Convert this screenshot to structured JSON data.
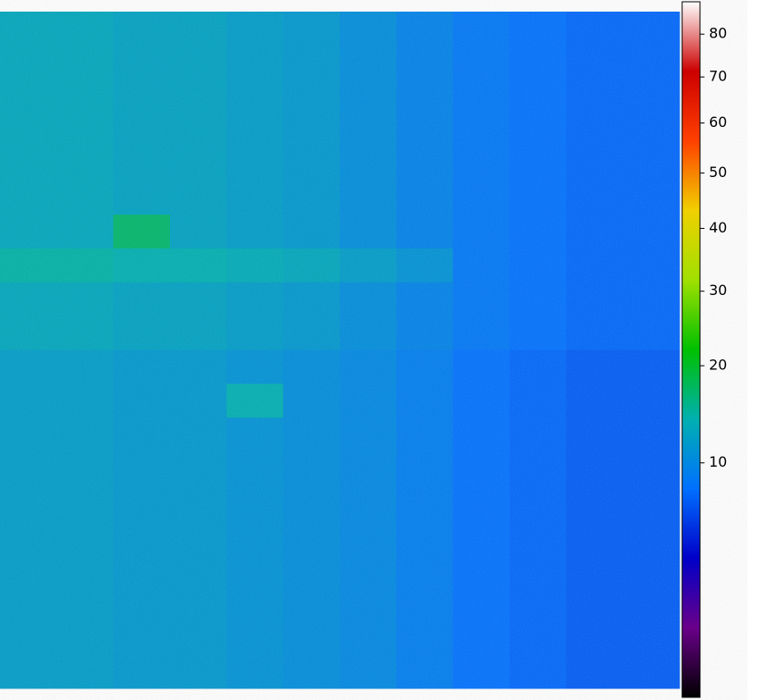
{
  "chart_data": {
    "type": "heatmap",
    "values": [
      [
        13,
        13,
        12.5,
        12.5,
        12,
        11.5,
        10.5,
        9.5,
        8.5,
        8,
        7.5,
        7.5
      ],
      [
        13,
        13,
        12.5,
        12.5,
        12,
        11.5,
        10.5,
        9.5,
        8.5,
        8,
        7.5,
        7.5
      ],
      [
        13,
        13,
        12.5,
        12.5,
        12,
        11.5,
        10.5,
        9.5,
        8.5,
        8,
        7.5,
        7.5
      ],
      [
        13,
        13,
        12.5,
        12.5,
        12,
        11.5,
        10.5,
        9.5,
        8.5,
        8,
        7.5,
        7.5
      ],
      [
        13,
        13,
        12.5,
        12.5,
        12,
        11.5,
        10.5,
        9.5,
        8.5,
        8,
        7.5,
        7.5
      ],
      [
        13,
        13,
        12.5,
        12.5,
        12,
        11.5,
        10.5,
        9.5,
        8.5,
        8,
        7.5,
        7.5
      ],
      [
        13,
        13,
        17,
        12.5,
        12,
        11.5,
        10.5,
        9.5,
        8.5,
        8,
        7.5,
        7.5
      ],
      [
        14.5,
        14.5,
        14,
        14,
        13.5,
        13,
        12,
        11,
        8.5,
        8,
        7.5,
        7.5
      ],
      [
        13,
        13,
        12.5,
        12.5,
        12,
        11.5,
        10.5,
        9.5,
        8.5,
        8,
        7.5,
        7.5
      ],
      [
        13,
        13,
        12.5,
        12.5,
        12,
        11.5,
        10.5,
        9.5,
        8.5,
        8,
        7.5,
        7.5
      ],
      [
        12,
        12,
        11.5,
        11.5,
        11,
        10.5,
        10,
        9,
        8,
        7.5,
        7,
        7
      ],
      [
        12,
        12,
        11.5,
        11.5,
        14,
        10.5,
        10,
        9,
        8,
        7.5,
        7,
        7
      ],
      [
        12,
        12,
        11.5,
        11.5,
        11,
        10.5,
        10,
        9,
        8,
        7.5,
        7,
        7
      ],
      [
        12,
        12,
        11.5,
        11.5,
        11,
        10.5,
        10,
        9,
        8,
        7.5,
        7,
        7
      ],
      [
        12,
        12,
        11.5,
        11.5,
        11,
        10.5,
        10,
        9,
        8,
        7.5,
        7,
        7
      ],
      [
        12,
        12,
        11.5,
        11.5,
        11,
        10.5,
        10,
        9,
        8,
        7.5,
        7,
        7
      ],
      [
        12,
        12,
        11.5,
        11.5,
        11,
        10.5,
        10,
        9,
        8,
        7.5,
        7,
        7
      ],
      [
        12,
        12,
        11.5,
        11.5,
        11,
        10.5,
        10,
        9,
        8,
        7.5,
        7,
        7
      ],
      [
        12,
        12,
        11.5,
        11.5,
        11,
        10.5,
        10,
        9,
        8,
        7.5,
        7,
        7
      ],
      [
        12,
        12,
        11.5,
        11.5,
        11,
        10.5,
        10,
        9,
        8,
        7.5,
        7,
        7
      ]
    ],
    "colorbar": {
      "lim": [
        0,
        88
      ],
      "ticks": [
        10,
        20,
        30,
        40,
        50,
        60,
        70,
        80
      ],
      "scale": "sqrt"
    },
    "colormap": [
      "#000000",
      "#6a008a",
      "#0000c8",
      "#0070ff",
      "#00b0b0",
      "#00c000",
      "#a0e000",
      "#f0d000",
      "#ff4000",
      "#cc0000",
      "#ffffff"
    ]
  }
}
